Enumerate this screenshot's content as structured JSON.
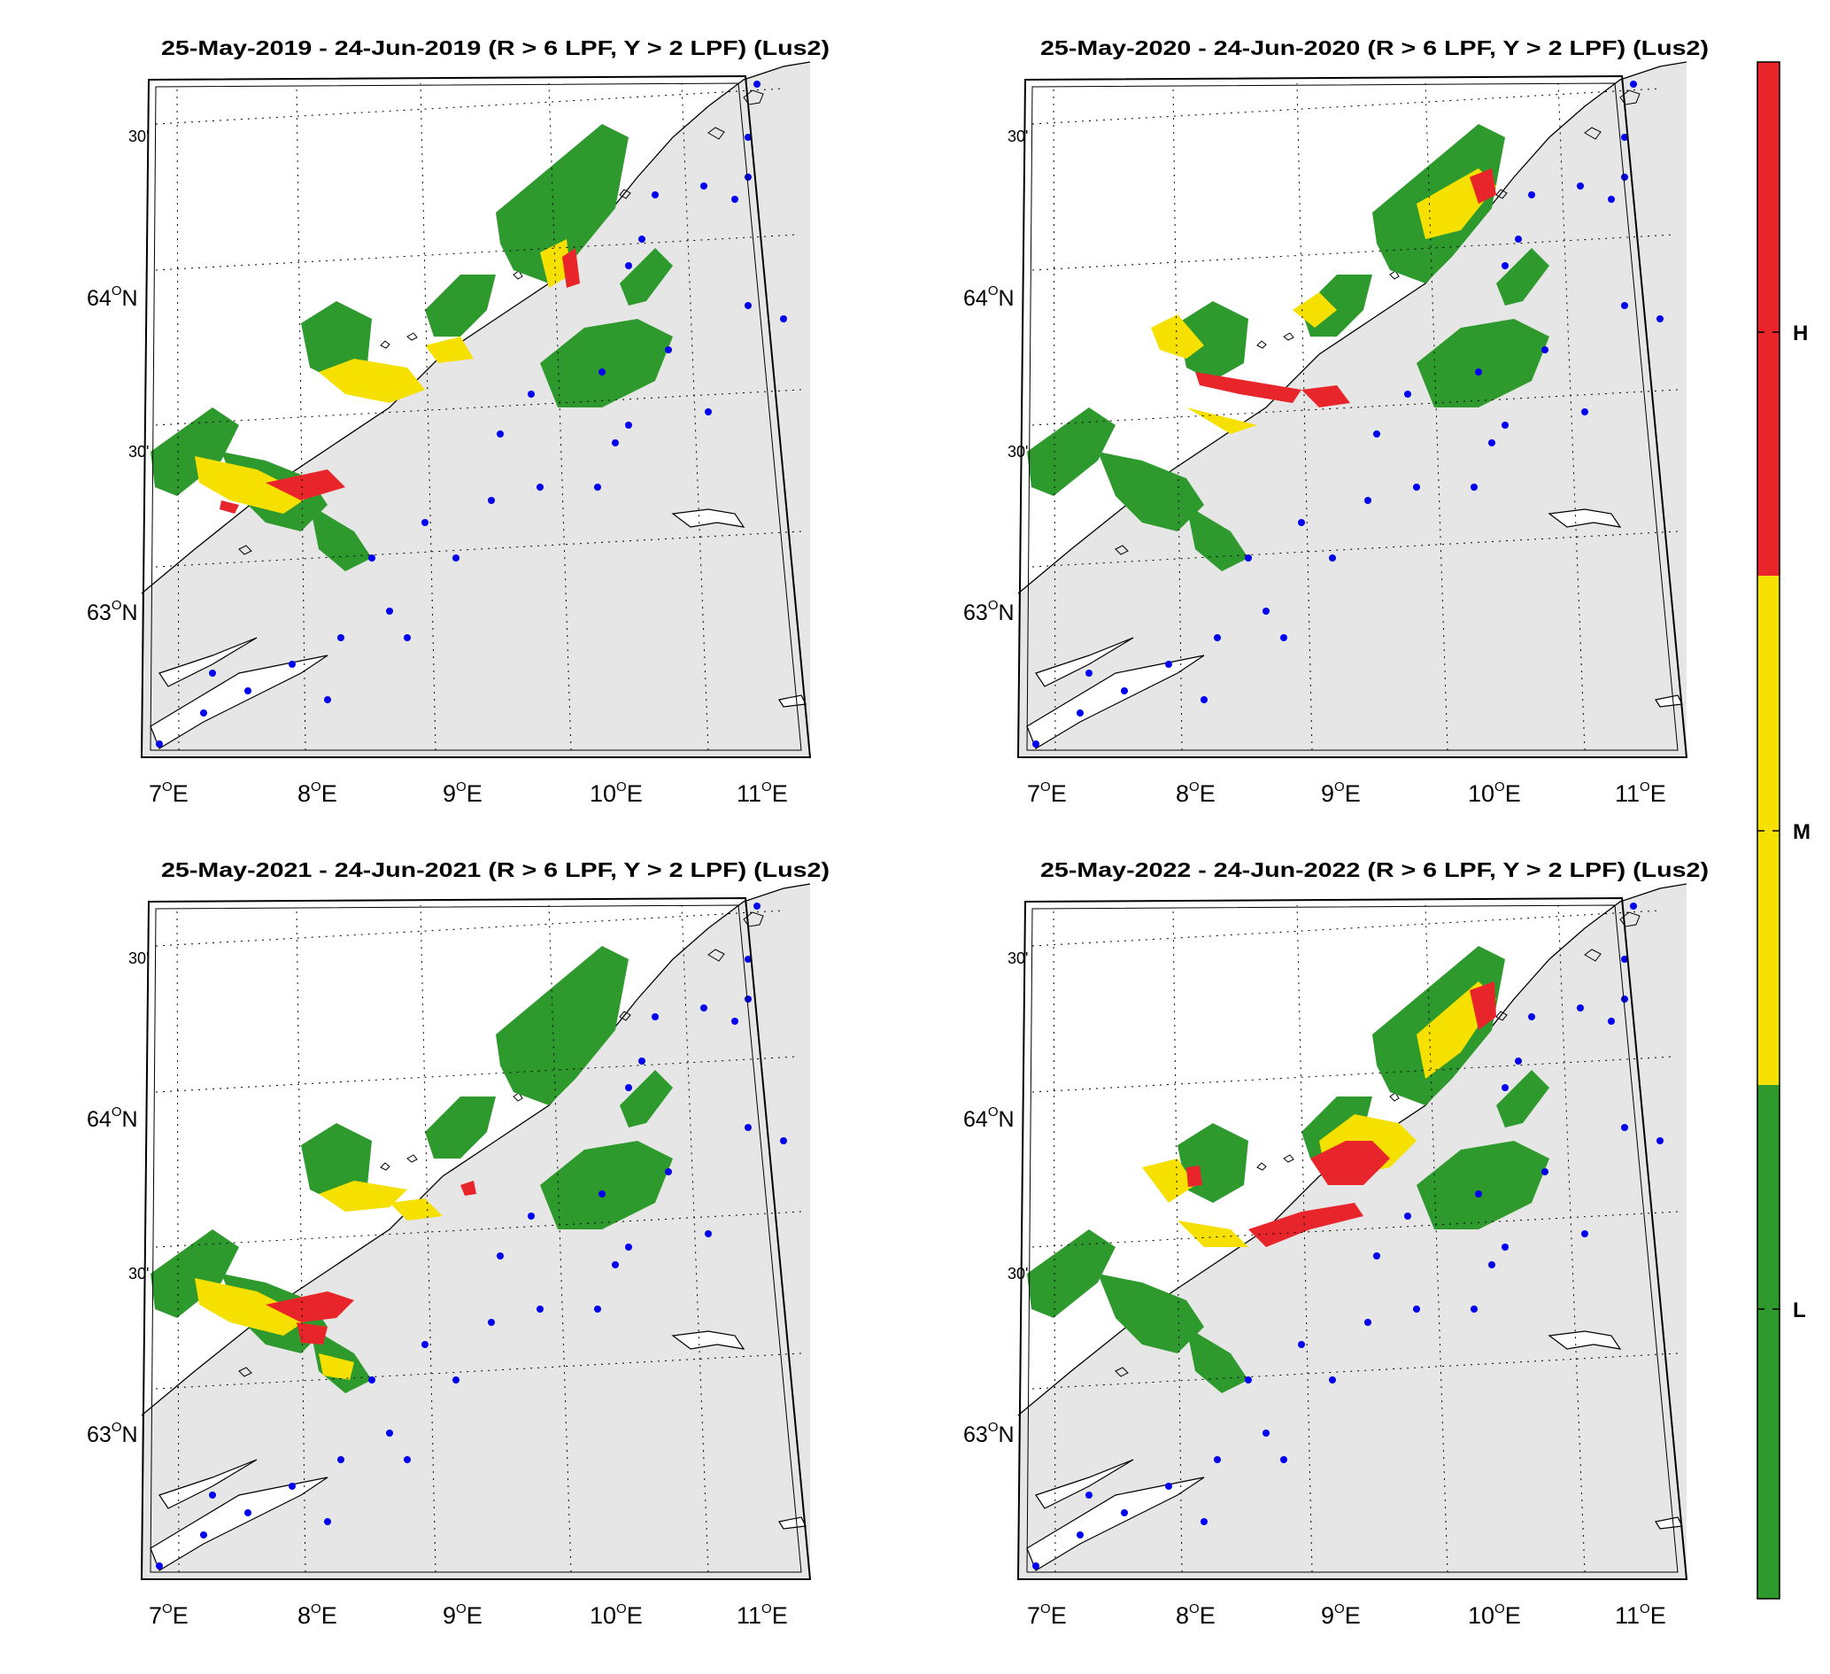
{
  "maps": [
    {
      "title": "25-May-2019  - 24-Jun-2019  (R > 6 LPF, Y > 2 LPF) (Lus2)",
      "year": "2019"
    },
    {
      "title": "25-May-2020  - 24-Jun-2020  (R > 6 LPF, Y > 2 LPF) (Lus2)",
      "year": "2020"
    },
    {
      "title": "25-May-2021  - 24-Jun-2021  (R > 6 LPF, Y > 2 LPF) (Lus2)",
      "year": "2021"
    },
    {
      "title": "25-May-2022  - 24-Jun-2022  (R > 6 LPF, Y > 2 LPF) (Lus2)",
      "year": "2022"
    }
  ],
  "lat_labels": {
    "top_minute": "30'",
    "deg64": "64",
    "mid_minute": "30'",
    "deg63": "63",
    "hemisphere": "N"
  },
  "lon_labels": [
    {
      "deg": "7",
      "hem": "E"
    },
    {
      "deg": "8",
      "hem": "E"
    },
    {
      "deg": "9",
      "hem": "E"
    },
    {
      "deg": "10",
      "hem": "E"
    },
    {
      "deg": "11",
      "hem": "E"
    }
  ],
  "degree_symbol": "O",
  "colorbar": {
    "labels": {
      "high": "H",
      "medium": "M",
      "low": "L"
    },
    "colors": {
      "high": "#e8252a",
      "medium": "#f5e000",
      "low": "#2e9a2e"
    }
  },
  "colors": {
    "land": "#e6e6e6",
    "sea": "#ffffff",
    "low": "#2e9a2e",
    "medium": "#f5e000",
    "high": "#e8252a",
    "farm_points": "#0000ee"
  }
}
